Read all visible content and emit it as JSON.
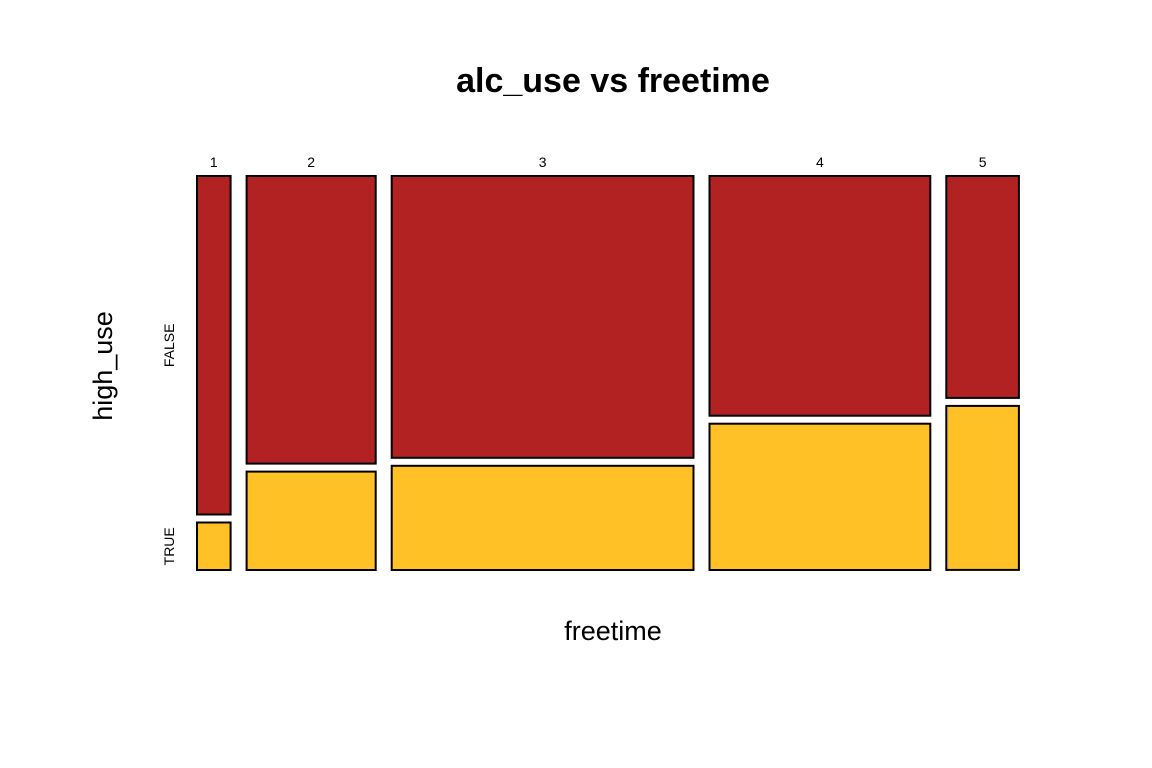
{
  "chart_data": {
    "type": "mosaic",
    "title": "alc_use vs freetime",
    "xlabel": "freetime",
    "ylabel": "high_use",
    "x_categories": [
      "1",
      "2",
      "3",
      "4",
      "5"
    ],
    "y_categories": [
      "FALSE",
      "TRUE"
    ],
    "x_proportions": [
      0.044,
      0.169,
      0.395,
      0.289,
      0.095
    ],
    "series": [
      {
        "name": "FALSE",
        "values": [
          0.877,
          0.745,
          0.73,
          0.621,
          0.575
        ]
      },
      {
        "name": "TRUE",
        "values": [
          0.123,
          0.255,
          0.27,
          0.379,
          0.425
        ]
      }
    ],
    "colors": {
      "FALSE": "#B22222",
      "TRUE": "#FFC125",
      "border": "#000000"
    }
  }
}
